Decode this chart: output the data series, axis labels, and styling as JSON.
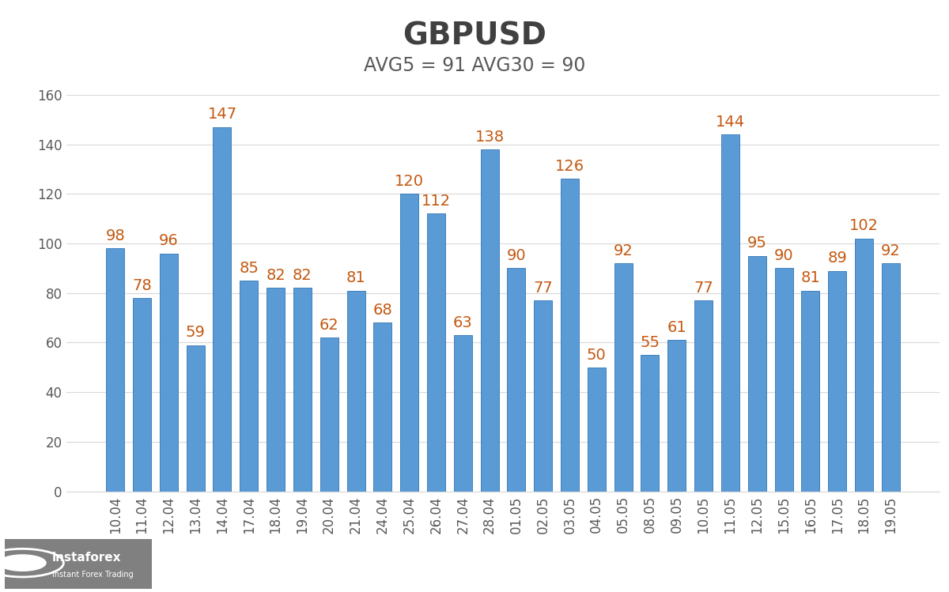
{
  "title": "GBPUSD",
  "subtitle": "AVG5 = 91 AVG30 = 90",
  "categories": [
    "10.04",
    "11.04",
    "12.04",
    "13.04",
    "14.04",
    "17.04",
    "18.04",
    "19.04",
    "20.04",
    "21.04",
    "24.04",
    "25.04",
    "26.04",
    "27.04",
    "28.04",
    "01.05",
    "02.05",
    "03.05",
    "04.05",
    "05.05",
    "08.05",
    "09.05",
    "10.05",
    "11.05",
    "12.05",
    "15.05",
    "16.05",
    "17.05",
    "18.05",
    "19.05"
  ],
  "values": [
    98,
    78,
    96,
    59,
    147,
    85,
    82,
    82,
    62,
    81,
    68,
    120,
    112,
    63,
    138,
    90,
    77,
    126,
    50,
    92,
    55,
    61,
    77,
    144,
    95,
    90,
    81,
    89,
    102,
    92
  ],
  "bar_color": "#5B9BD5",
  "bar_edge_color": "#2E75B6",
  "value_label_color": "#C45911",
  "title_color": "#404040",
  "subtitle_color": "#595959",
  "tick_color": "#595959",
  "background_color": "#FFFFFF",
  "grid_color": "#D9D9D9",
  "ylim": [
    0,
    160
  ],
  "yticks": [
    0,
    20,
    40,
    60,
    80,
    100,
    120,
    140,
    160
  ],
  "title_fontsize": 28,
  "subtitle_fontsize": 17,
  "value_label_fontsize": 14,
  "tick_fontsize": 12,
  "logo_bg": "#808080",
  "logo_text_color": "#FFFFFF"
}
